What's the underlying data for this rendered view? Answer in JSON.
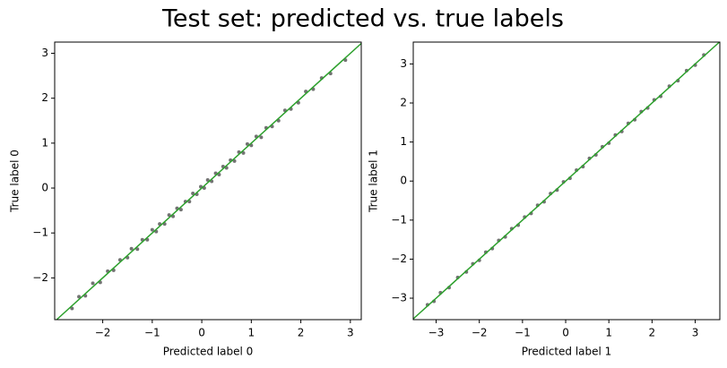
{
  "title": "Test set: predicted vs. true labels",
  "chart_data": [
    {
      "type": "scatter",
      "xlabel": "Predicted label 0",
      "ylabel": "True label 0",
      "xlim": [
        -2.97,
        3.22
      ],
      "ylim": [
        -2.93,
        3.25
      ],
      "xticks": [
        {
          "value": -2,
          "label": "−2"
        },
        {
          "value": -1,
          "label": "−1"
        },
        0,
        1,
        2,
        3
      ],
      "yticks": [
        {
          "value": -2,
          "label": "−2"
        },
        {
          "value": -1,
          "label": "−1"
        },
        0,
        1,
        2,
        3
      ],
      "line_color": "#2ca02c",
      "series": [
        {
          "color": "#000000",
          "x": [
            -2.62,
            -2.48,
            -2.35,
            -2.2,
            -2.05,
            -1.9,
            -1.78,
            -1.65,
            -1.5,
            -1.42,
            -1.3,
            -1.2,
            -1.1,
            -1.0,
            -0.92,
            -0.85,
            -0.75,
            -0.66,
            -0.58,
            -0.5,
            -0.42,
            -0.33,
            -0.25,
            -0.18,
            -0.1,
            -0.02,
            0.05,
            0.12,
            0.2,
            0.28,
            0.35,
            0.43,
            0.5,
            0.58,
            0.66,
            0.75,
            0.84,
            0.92,
            1.0,
            1.1,
            1.2,
            1.3,
            1.42,
            1.55,
            1.68,
            1.8,
            1.95,
            2.1,
            2.25,
            2.42,
            2.6,
            2.9
          ],
          "values": [
            -2.68,
            -2.42,
            -2.4,
            -2.12,
            -2.1,
            -1.85,
            -1.83,
            -1.6,
            -1.55,
            -1.35,
            -1.36,
            -1.15,
            -1.15,
            -0.93,
            -0.97,
            -0.8,
            -0.8,
            -0.6,
            -0.63,
            -0.45,
            -0.48,
            -0.3,
            -0.3,
            -0.12,
            -0.14,
            0.03,
            0.0,
            0.18,
            0.15,
            0.33,
            0.3,
            0.48,
            0.45,
            0.62,
            0.6,
            0.8,
            0.78,
            0.98,
            0.95,
            1.15,
            1.13,
            1.34,
            1.37,
            1.5,
            1.73,
            1.76,
            1.9,
            2.15,
            2.2,
            2.45,
            2.55,
            2.85
          ]
        }
      ]
    },
    {
      "type": "scatter",
      "xlabel": "Predicted label 1",
      "ylabel": "True label 1",
      "xlim": [
        -3.53,
        3.57
      ],
      "ylim": [
        -3.55,
        3.56
      ],
      "xticks": [
        {
          "value": -3,
          "label": "−3"
        },
        {
          "value": -2,
          "label": "−2"
        },
        {
          "value": -1,
          "label": "−1"
        },
        0,
        1,
        2,
        3
      ],
      "yticks": [
        {
          "value": -3,
          "label": "−3"
        },
        {
          "value": -2,
          "label": "−2"
        },
        {
          "value": -1,
          "label": "−1"
        },
        0,
        1,
        2,
        3
      ],
      "line_color": "#2ca02c",
      "series": [
        {
          "color": "#000000",
          "x": [
            -3.2,
            -3.05,
            -2.9,
            -2.7,
            -2.5,
            -2.3,
            -2.15,
            -2.0,
            -1.85,
            -1.7,
            -1.55,
            -1.4,
            -1.25,
            -1.1,
            -0.95,
            -0.8,
            -0.65,
            -0.5,
            -0.35,
            -0.2,
            -0.05,
            0.1,
            0.25,
            0.4,
            0.55,
            0.7,
            0.85,
            1.0,
            1.15,
            1.3,
            1.45,
            1.6,
            1.75,
            1.9,
            2.05,
            2.2,
            2.4,
            2.6,
            2.8,
            3.0,
            3.2
          ],
          "values": [
            -3.17,
            -3.08,
            -2.86,
            -2.73,
            -2.47,
            -2.33,
            -2.12,
            -2.03,
            -1.82,
            -1.73,
            -1.52,
            -1.43,
            -1.22,
            -1.13,
            -0.92,
            -0.83,
            -0.62,
            -0.53,
            -0.32,
            -0.23,
            -0.02,
            0.07,
            0.28,
            0.37,
            0.58,
            0.67,
            0.88,
            0.97,
            1.18,
            1.27,
            1.48,
            1.57,
            1.78,
            1.87,
            2.08,
            2.17,
            2.43,
            2.57,
            2.83,
            2.97,
            3.23
          ]
        }
      ]
    }
  ]
}
